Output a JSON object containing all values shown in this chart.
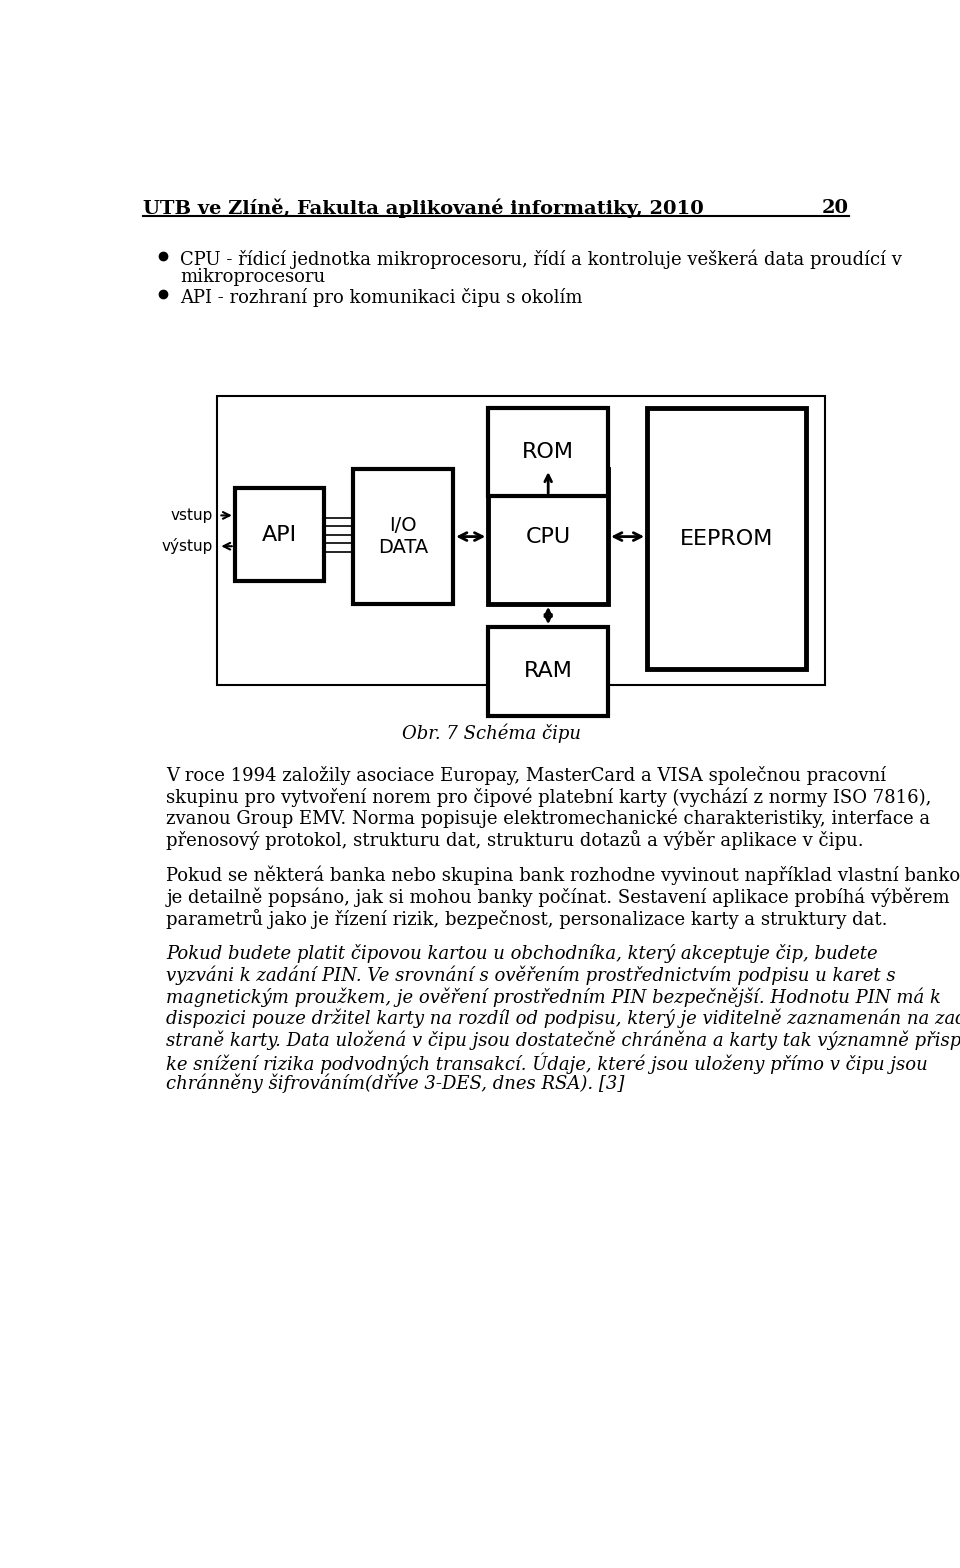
{
  "page_header": "UTB ve Zlíně, Fakulta aplikované informatiky, 2010",
  "page_number": "20",
  "bullet1_line1": "CPU - řídicí jednotka mikroprocesoru, řídí a kontroluje veškerá data proudící v",
  "bullet1_line2": "mikroprocesoru",
  "bullet2": "API - rozhraní pro komunikaci čipu s okolím",
  "fig_caption": "Obr. 7 Schéma čipu",
  "para1": "V roce 1994 založily asociace Europay, MasterCard a VISA společnou pracovní skupinu pro vytvoření norem pro čipové platební karty (vychází z normy ISO 7816), zvanou Group EMV. Norma popisuje elektromechanické charakteristiky, interface a přenosový protokol, strukturu dat, strukturu dotazů a výběr aplikace v čipu.",
  "para2": "Pokud se některá banka nebo skupina bank rozhodne vyvinout například vlastní bankovní aplikaci, je detailně popsáno, jak si mohou banky počínat. Sestavení aplikace probíhá výběrem parametrů jako je řízení rizik, bezpečnost, personalizace karty a struktury dat.",
  "para3": "Pokud budete platit čipovou kartou u obchodníka, který akceptuje čip, budete vyzváni k zadání PIN. Ve srovnání s ověřením prostřednictvím podpisu u karet s magnetickým proužkem, je ověření prostředním PIN bezpečnější. Hodnotu PIN má k dispozici pouze držitel karty na rozdíl od podpisu, který je viditelně zaznamenán na zadní straně karty. Data uložená v čipu jsou dostatečně chráněna a karty tak významně přispívají ke snížení rizika podvodných transakcí. Údaje, které jsou uloženy přímo v čipu jsou chránněny šifrováním(dříve 3-DES, dnes RSA). [3]",
  "bg_color": "#ffffff",
  "text_color": "#000000"
}
